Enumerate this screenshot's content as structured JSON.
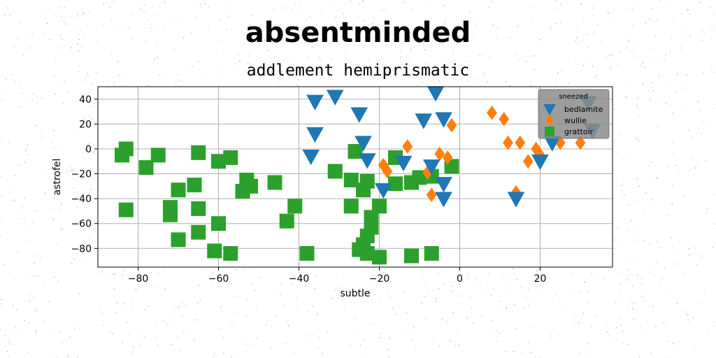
{
  "page": {
    "title": "absentminded",
    "subtitle": "addlement hemiprismatic"
  },
  "chart_data": {
    "type": "scatter",
    "title": "absentminded",
    "subtitle": "addlement hemiprismatic",
    "xlabel": "subtle",
    "ylabel": "astrofel",
    "xlim": [
      -90,
      38
    ],
    "ylim": [
      -95,
      50
    ],
    "xticks": [
      -80,
      -60,
      -40,
      -20,
      0,
      20
    ],
    "yticks": [
      -80,
      -60,
      -40,
      -20,
      0,
      20,
      40
    ],
    "xtick_labels": [
      "−80",
      "−60",
      "−40",
      "−20",
      "0",
      "20"
    ],
    "ytick_labels": [
      "−80",
      "−60",
      "−40",
      "−20",
      "0",
      "20",
      "40"
    ],
    "grid": true,
    "legend": {
      "title": "sneezed",
      "placement": "top-right"
    },
    "series": [
      {
        "name": "bedlamite",
        "marker": "triangle-down",
        "color": "#1f77b4",
        "points": [
          [
            -36,
            38
          ],
          [
            -31,
            42
          ],
          [
            -25,
            28
          ],
          [
            -36,
            12
          ],
          [
            -24,
            5
          ],
          [
            -37,
            -6
          ],
          [
            -23,
            -9
          ],
          [
            -6,
            45
          ],
          [
            -9,
            23
          ],
          [
            -4,
            24
          ],
          [
            -14,
            -11
          ],
          [
            -7,
            -14
          ],
          [
            -4,
            -28
          ],
          [
            -19,
            -33
          ],
          [
            -4,
            -40
          ],
          [
            20,
            -10
          ],
          [
            14,
            -40
          ],
          [
            23,
            5
          ],
          [
            32,
            37
          ],
          [
            33,
            15
          ]
        ]
      },
      {
        "name": "wullie",
        "marker": "diamond",
        "color": "#ff7f0e",
        "points": [
          [
            8,
            29
          ],
          [
            11,
            24
          ],
          [
            -2,
            19
          ],
          [
            12,
            5
          ],
          [
            15,
            5
          ],
          [
            -13,
            2
          ],
          [
            19,
            0
          ],
          [
            20,
            -5
          ],
          [
            25,
            5
          ],
          [
            30,
            5
          ],
          [
            -5,
            -4
          ],
          [
            -3,
            -7
          ],
          [
            17,
            -10
          ],
          [
            -19,
            -13
          ],
          [
            -18,
            -18
          ],
          [
            -8,
            -19
          ],
          [
            -7,
            -37
          ],
          [
            14,
            -35
          ]
        ]
      },
      {
        "name": "grattoir",
        "marker": "square",
        "color": "#2ca02c",
        "points": [
          [
            -83,
            0
          ],
          [
            -84,
            -5
          ],
          [
            -78,
            -15
          ],
          [
            -75,
            -5
          ],
          [
            -65,
            -3
          ],
          [
            -60,
            -10
          ],
          [
            -57,
            -7
          ],
          [
            -83,
            -49
          ],
          [
            -72,
            -47
          ],
          [
            -72,
            -53
          ],
          [
            -70,
            -33
          ],
          [
            -66,
            -29
          ],
          [
            -65,
            -48
          ],
          [
            -60,
            -60
          ],
          [
            -65,
            -67
          ],
          [
            -70,
            -73
          ],
          [
            -61,
            -82
          ],
          [
            -57,
            -84
          ],
          [
            -53,
            -25
          ],
          [
            -52,
            -30
          ],
          [
            -54,
            -34
          ],
          [
            -46,
            -27
          ],
          [
            -41,
            -46
          ],
          [
            -43,
            -58
          ],
          [
            -38,
            -84
          ],
          [
            -31,
            -18
          ],
          [
            -27,
            -25
          ],
          [
            -27,
            -46
          ],
          [
            -26,
            -2
          ],
          [
            -24,
            -33
          ],
          [
            -23,
            -26
          ],
          [
            -22,
            -55
          ],
          [
            -20,
            -46
          ],
          [
            -22,
            -63
          ],
          [
            -23,
            -70
          ],
          [
            -24,
            -77
          ],
          [
            -25,
            -81
          ],
          [
            -20,
            -87
          ],
          [
            -23,
            -84
          ],
          [
            -16,
            -7
          ],
          [
            -16,
            -28
          ],
          [
            -12,
            -27
          ],
          [
            -10,
            -23
          ],
          [
            -7,
            -22
          ],
          [
            -2,
            -14
          ],
          [
            -12,
            -86
          ],
          [
            -7,
            -84
          ]
        ]
      }
    ]
  }
}
